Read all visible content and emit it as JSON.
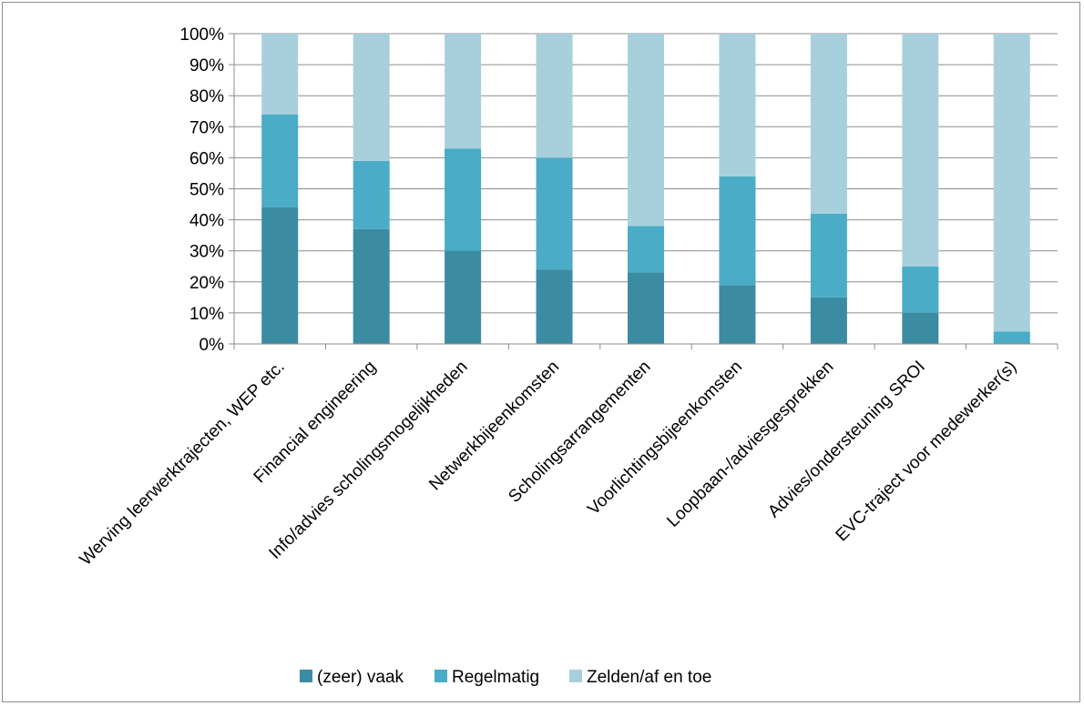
{
  "chart_data": {
    "type": "bar",
    "stacked": true,
    "percent_stacked": true,
    "categories": [
      "Werving leerwerktrajecten, WEP etc.",
      "Financial engineering",
      "Info/advies scholingsmogelijkheden",
      "Netwerkbijeenkomsten",
      "Scholingsarrangementen",
      "Voorlichtingsbijeenkomsten",
      "Loopbaan-/adviesgesprekken",
      "Advies/ondersteuning SROI",
      "EVC-traject voor medewerker(s)"
    ],
    "series": [
      {
        "name": "(zeer) vaak",
        "color": "#3b8ba3",
        "values": [
          44,
          37,
          30,
          24,
          23,
          19,
          15,
          10,
          0
        ]
      },
      {
        "name": "Regelmatig",
        "color": "#4aacc6",
        "values": [
          30,
          22,
          33,
          36,
          15,
          35,
          27,
          15,
          4
        ]
      },
      {
        "name": "Zelden/af en toe",
        "color": "#a8cfdc",
        "values": [
          26,
          41,
          37,
          40,
          62,
          46,
          58,
          75,
          96
        ]
      }
    ],
    "y_ticks": [
      "0%",
      "10%",
      "20%",
      "30%",
      "40%",
      "50%",
      "60%",
      "70%",
      "80%",
      "90%",
      "100%"
    ],
    "ylim": [
      0,
      100
    ],
    "grid": true,
    "legend_position": "bottom",
    "title": "",
    "xlabel": "",
    "ylabel": ""
  }
}
